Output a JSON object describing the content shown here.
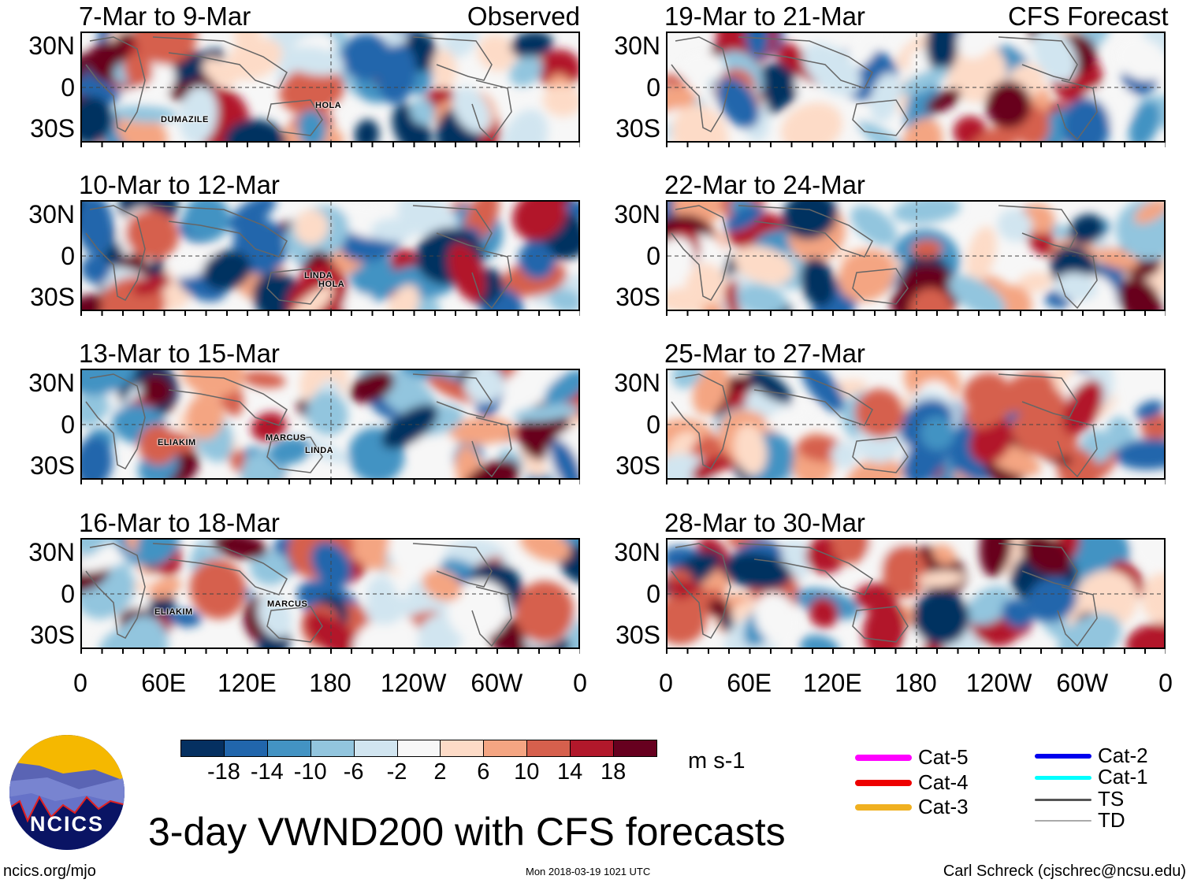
{
  "left_header_right": "Observed",
  "right_header_right": "CFS Forecast",
  "panels_left": [
    {
      "title": "7-Mar to 9-Mar",
      "storms": [
        "DUMAZILE",
        "HOLA"
      ]
    },
    {
      "title": "10-Mar to 12-Mar",
      "storms": [
        "LINDA",
        "HOLA"
      ]
    },
    {
      "title": "13-Mar to 15-Mar",
      "storms": [
        "ELIAKIM",
        "MARCUS",
        "LINDA"
      ]
    },
    {
      "title": "16-Mar to 18-Mar",
      "storms": [
        "ELIAKIM",
        "MARCUS"
      ]
    }
  ],
  "panels_right": [
    {
      "title": "19-Mar to 21-Mar"
    },
    {
      "title": "22-Mar to 24-Mar"
    },
    {
      "title": "25-Mar to 27-Mar"
    },
    {
      "title": "28-Mar to 30-Mar"
    }
  ],
  "lat_labels": [
    "30N",
    "0",
    "30S"
  ],
  "lon_labels": [
    "0",
    "60E",
    "120E",
    "180",
    "120W",
    "60W",
    "0"
  ],
  "colorbar": {
    "colors": [
      "#053061",
      "#2166ac",
      "#4393c3",
      "#92c5de",
      "#d1e5f0",
      "#f7f7f7",
      "#fddbc7",
      "#f4a582",
      "#d6604d",
      "#b2182b",
      "#67001f"
    ],
    "labels": [
      "-18",
      "-14",
      "-10",
      "-6",
      "-2",
      "2",
      "6",
      "10",
      "14",
      "18"
    ],
    "units": "m s-1"
  },
  "legend": [
    {
      "label": "Cat-5",
      "color": "#ff00ff"
    },
    {
      "label": "Cat-4",
      "color": "#ee0000"
    },
    {
      "label": "Cat-3",
      "color": "#f0b020"
    },
    {
      "label": "Cat-2",
      "color": "#0000ee"
    },
    {
      "label": "Cat-1",
      "color": "#00ffff"
    },
    {
      "label": "TS",
      "color": "#555555"
    },
    {
      "label": "TD",
      "color": "#aaaaaa"
    }
  ],
  "title": "3-day VWND200 with CFS forecasts",
  "logo_text": "NCICS",
  "footer": {
    "url": "ncics.org/mjo",
    "timestamp": "Mon 2018-03-19 1021 UTC",
    "credit": "Carl Schreck (cjschrec@ncsu.edu)"
  }
}
